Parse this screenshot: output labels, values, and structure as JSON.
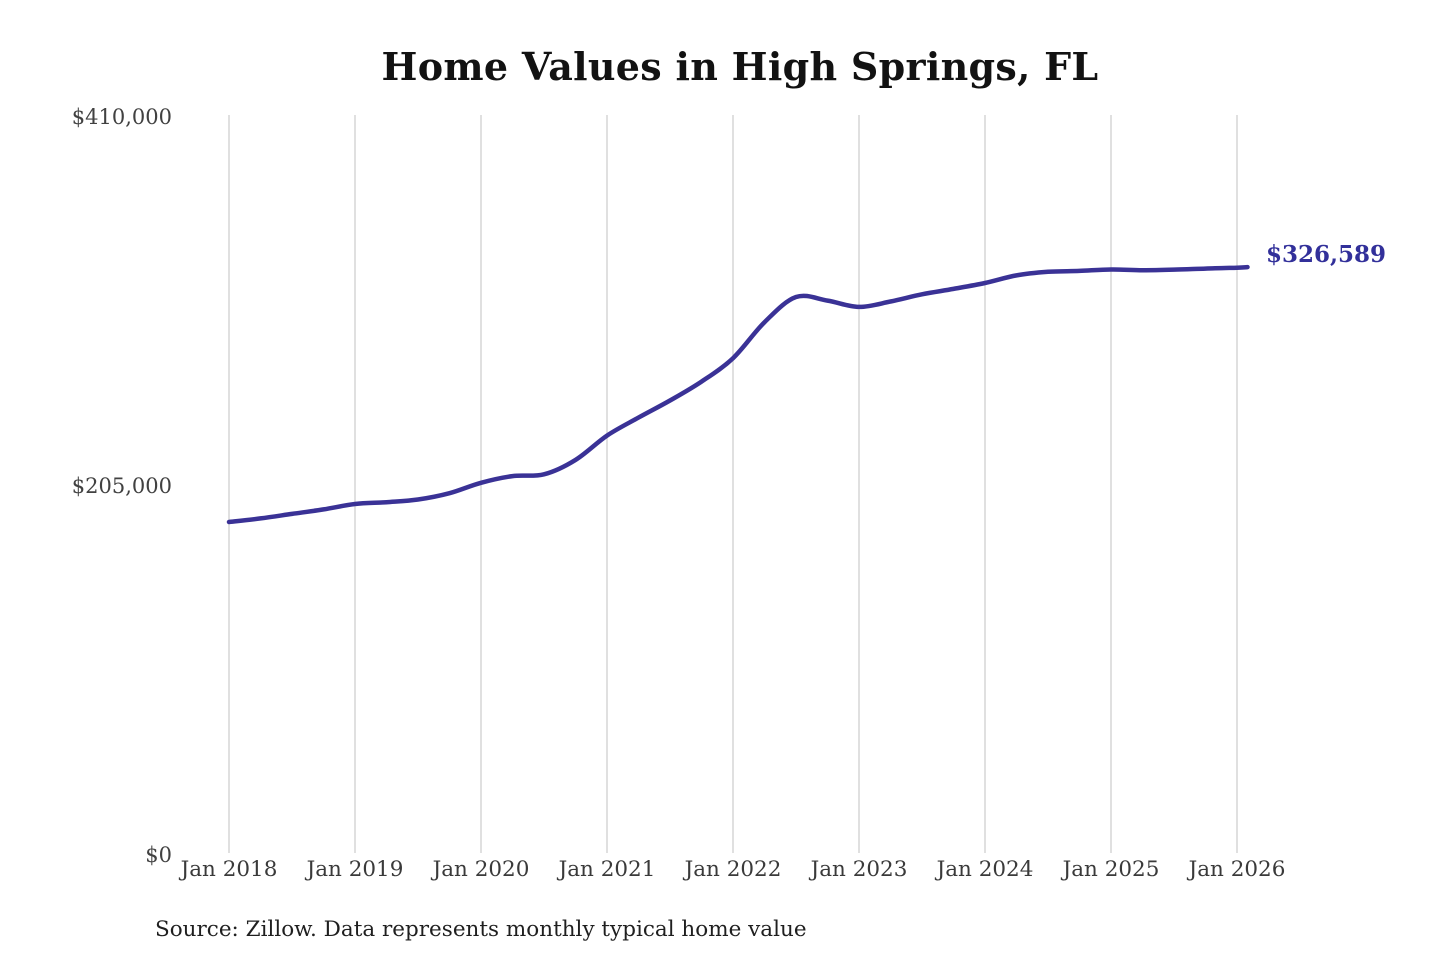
{
  "page": {
    "background": "#ffffff"
  },
  "chart_data": {
    "type": "line",
    "title": "Home Values in High Springs, FL",
    "source_note": "Source: Zillow. Data represents monthly typical home value",
    "end_label": "$326,589",
    "end_value": 326589,
    "legend": "none",
    "grid": "vertical-only",
    "ylim": [
      0,
      410000
    ],
    "x_base_month": "2018-01",
    "x_ticks": [
      "Jan 2018",
      "Jan 2019",
      "Jan 2020",
      "Jan 2021",
      "Jan 2022",
      "Jan 2023",
      "Jan 2024",
      "Jan 2025",
      "Jan 2026"
    ],
    "y_ticks": [
      {
        "label": "$410,000",
        "value": 410000
      },
      {
        "label": "$205,000",
        "value": 205000
      },
      {
        "label": "$0",
        "value": 0
      }
    ],
    "series": [
      {
        "name": "Monthly typical home value",
        "color": "#3a3296",
        "points": [
          [
            "2018-01",
            185000
          ],
          [
            "2018-04",
            187000
          ],
          [
            "2018-07",
            189500
          ],
          [
            "2018-10",
            192000
          ],
          [
            "2019-01",
            195000
          ],
          [
            "2019-04",
            196000
          ],
          [
            "2019-07",
            197500
          ],
          [
            "2019-10",
            201000
          ],
          [
            "2020-01",
            206800
          ],
          [
            "2020-04",
            210500
          ],
          [
            "2020-07",
            211500
          ],
          [
            "2020-10",
            219500
          ],
          [
            "2021-01",
            233000
          ],
          [
            "2021-04",
            243000
          ],
          [
            "2021-07",
            252500
          ],
          [
            "2021-10",
            263000
          ],
          [
            "2022-01",
            276000
          ],
          [
            "2022-04",
            296000
          ],
          [
            "2022-07",
            310000
          ],
          [
            "2022-10",
            308000
          ],
          [
            "2023-01",
            304500
          ],
          [
            "2023-04",
            307500
          ],
          [
            "2023-07",
            311500
          ],
          [
            "2023-10",
            314500
          ],
          [
            "2024-01",
            317800
          ],
          [
            "2024-04",
            322000
          ],
          [
            "2024-07",
            324000
          ],
          [
            "2024-10",
            324500
          ],
          [
            "2025-01",
            325300
          ],
          [
            "2025-04",
            324900
          ],
          [
            "2025-07",
            325200
          ],
          [
            "2025-10",
            325800
          ],
          [
            "2026-01",
            326300
          ],
          [
            "2026-02",
            326589
          ]
        ]
      }
    ],
    "colors": {
      "line": "#3a3296",
      "grid": "#cbcbcb",
      "axis_text": "#3d3d3d",
      "title_text": "#121212",
      "end_label_text": "#32309a"
    }
  }
}
